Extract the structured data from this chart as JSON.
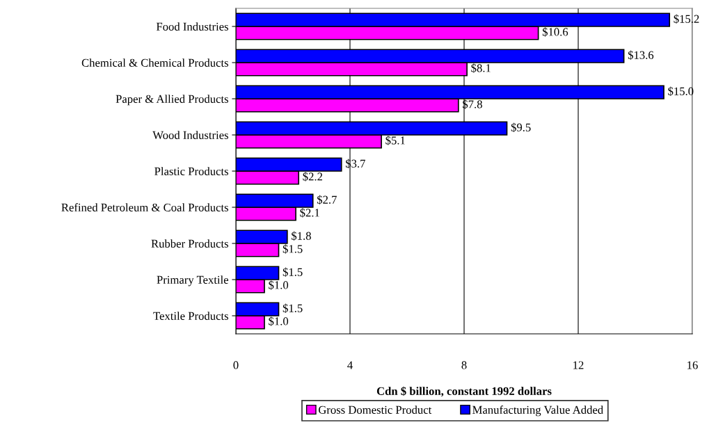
{
  "chart_data": {
    "type": "bar",
    "orientation": "horizontal",
    "xlabel": "Cdn $ billion, constant 1992 dollars",
    "categories": [
      "Food Industries",
      "Chemical & Chemical Products",
      "Paper & Allied Products",
      "Wood Industries",
      "Plastic Products",
      "Refined Petroleum & Coal Products",
      "Rubber Products",
      "Primary Textile",
      "Textile Products"
    ],
    "series": [
      {
        "name": "Gross Domestic Product",
        "color": "#ff00ff",
        "values": [
          10.6,
          8.1,
          7.8,
          5.1,
          2.2,
          2.1,
          1.5,
          1.0,
          1.0
        ],
        "value_labels": [
          "$10.6",
          "$8.1",
          "$7.8",
          "$5.1",
          "$2.2",
          "$2.1",
          "$1.5",
          "$1.0",
          "$1.0"
        ]
      },
      {
        "name": "Manufacturing Value Added",
        "color": "#0000ff",
        "values": [
          15.2,
          13.6,
          15.0,
          9.5,
          3.7,
          2.7,
          1.8,
          1.5,
          1.5
        ],
        "value_labels": [
          "$15.2",
          "$13.6",
          "$15.0",
          "$9.5",
          "$3.7",
          "$2.7",
          "$1.8",
          "$1.5",
          "$1.5"
        ]
      }
    ],
    "xlim": [
      0,
      16
    ],
    "xticks": [
      0,
      4,
      8,
      12,
      16
    ],
    "grid": "x",
    "legend": "bottom"
  }
}
